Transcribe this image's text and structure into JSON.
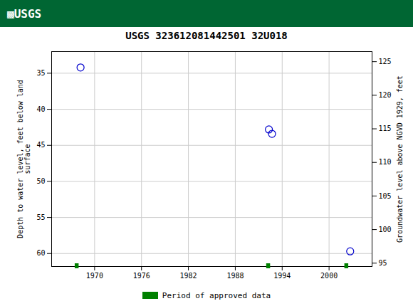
{
  "chart_data": {
    "type": "scatter",
    "title": "USGS 323612081442501 32U018",
    "annotations": [
      "▩USGS"
    ],
    "x": [
      1968.2,
      1992.3,
      1992.7,
      2002.7
    ],
    "values": [
      34.2,
      42.8,
      43.4,
      59.7
    ],
    "color": "#0000cc",
    "marker": "circle",
    "periods": {
      "name": "Period of approved data",
      "start": [
        1967.5,
        1992.0,
        2002.0
      ],
      "width": [
        0.5,
        0.5,
        0.5
      ],
      "color": "#008000"
    },
    "ylabel": "Depth to water level, feet below land\nsurface",
    "y2label": "Groundwater level above NGVD 1929, feet",
    "xlim": [
      1964.5,
      2005.5
    ],
    "xticks": [
      1970,
      1976,
      1982,
      1988,
      1994,
      2000
    ],
    "ylim": [
      61.8,
      32.0
    ],
    "yticks": [
      35,
      40,
      45,
      50,
      55,
      60
    ],
    "y2lim": [
      94.5,
      126.5
    ],
    "y2ticks": [
      95,
      100,
      105,
      110,
      115,
      120,
      125
    ],
    "grid": true,
    "legend": "bottom"
  }
}
